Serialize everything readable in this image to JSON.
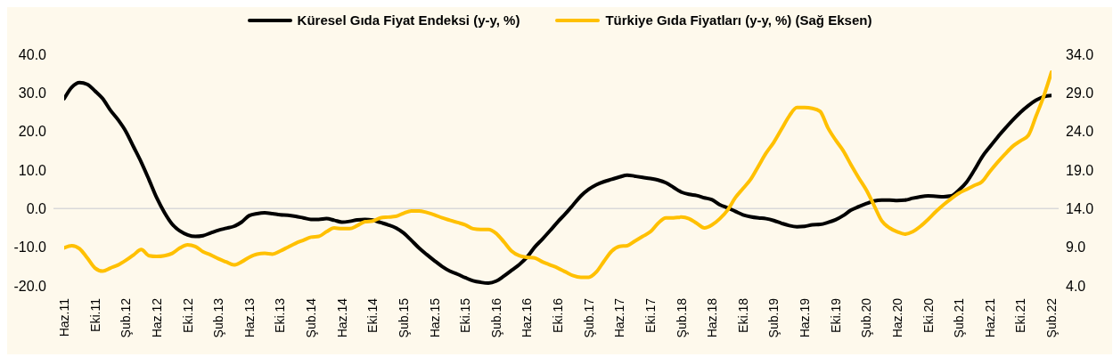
{
  "chart_data": {
    "type": "line",
    "categories": [
      "Haz.11",
      null,
      null,
      null,
      "Eki.11",
      null,
      null,
      null,
      "Şub.12",
      null,
      null,
      null,
      "Haz.12",
      null,
      null,
      null,
      "Eki.12",
      null,
      null,
      null,
      "Şub.13",
      null,
      null,
      null,
      "Haz.13",
      null,
      null,
      null,
      "Eki.13",
      null,
      null,
      null,
      "Şub.14",
      null,
      null,
      null,
      "Haz.14",
      null,
      null,
      null,
      "Eki.14",
      null,
      null,
      null,
      "Şub.15",
      null,
      null,
      null,
      "Haz.15",
      null,
      null,
      null,
      "Eki.15",
      null,
      null,
      null,
      "Şub.16",
      null,
      null,
      null,
      "Haz.16",
      null,
      null,
      null,
      "Eki.16",
      null,
      null,
      null,
      "Şub.17",
      null,
      null,
      null,
      "Haz.17",
      null,
      null,
      null,
      "Eki.17",
      null,
      null,
      null,
      "Şub.18",
      null,
      null,
      null,
      "Haz.18",
      null,
      null,
      null,
      "Eki.18",
      null,
      null,
      null,
      "Şub.19",
      null,
      null,
      null,
      "Haz.19",
      null,
      null,
      null,
      "Eki.19",
      null,
      null,
      null,
      "Şub.20",
      null,
      null,
      null,
      "Haz.20",
      null,
      null,
      null,
      "Eki.20",
      null,
      null,
      null,
      "Şub.21",
      null,
      null,
      null,
      "Haz.21",
      null,
      null,
      null,
      "Eki.21",
      null,
      null,
      null,
      "Şub.22"
    ],
    "series": [
      {
        "name": "Küresel Gıda Fiyat Endeksi (y-y, %)",
        "color": "#000000",
        "values": [
          28.5,
          31.5,
          32.7,
          32.2,
          30.5,
          28.5,
          25.5,
          23,
          20,
          16,
          12,
          7.5,
          2.8,
          -1,
          -4,
          -5.8,
          -6.8,
          -7.2,
          -7,
          -6.3,
          -5.6,
          -5.1,
          -4.6,
          -3.5,
          -1.8,
          -1.3,
          -1.1,
          -1.3,
          -1.6,
          -1.7,
          -2,
          -2.4,
          -2.8,
          -2.8,
          -2.6,
          -3,
          -3.5,
          -3.3,
          -2.9,
          -2.8,
          -3,
          -3.6,
          -4.2,
          -5,
          -6.3,
          -8.2,
          -10.2,
          -11.9,
          -13.5,
          -15,
          -16.2,
          -17,
          -17.9,
          -18.7,
          -19.1,
          -19.3,
          -18.8,
          -17.5,
          -16,
          -14.5,
          -12.6,
          -10,
          -7.9,
          -5.7,
          -3.4,
          -1.3,
          1,
          3.3,
          5,
          6.2,
          7,
          7.6,
          8.2,
          8.7,
          8.4,
          8.1,
          7.8,
          7.4,
          6.7,
          5.5,
          4.3,
          3.7,
          3.4,
          2.8,
          2.3,
          1,
          0.2,
          -0.7,
          -1.6,
          -2.1,
          -2.4,
          -2.6,
          -3.1,
          -3.8,
          -4.4,
          -4.7,
          -4.6,
          -4.2,
          -4.1,
          -3.6,
          -2.9,
          -1.8,
          -0.4,
          0.5,
          1.3,
          2,
          2.2,
          2.2,
          2.1,
          2.2,
          2.7,
          3.1,
          3.3,
          3.2,
          3.1,
          3.3,
          4.8,
          6.9,
          10,
          13.4,
          16,
          18.5,
          20.8,
          23,
          25,
          26.7,
          28.1,
          29,
          29.3
        ]
      },
      {
        "name": "Türkiye Gıda Fiyatları (y-y, %) (Sağ Eksen)",
        "color": "#ffc000",
        "axis": "y2",
        "values": [
          8.9,
          9.2,
          8.8,
          7.6,
          6.3,
          5.9,
          6.3,
          6.7,
          7.3,
          8,
          8.7,
          7.9,
          7.8,
          7.9,
          8.2,
          8.9,
          9.3,
          9.1,
          8.4,
          8,
          7.5,
          7.1,
          6.7,
          7.1,
          7.7,
          8.1,
          8.2,
          8.1,
          8.5,
          9,
          9.5,
          9.9,
          10.3,
          10.4,
          11,
          11.5,
          11.4,
          11.4,
          11.8,
          12.3,
          12.4,
          12.8,
          12.9,
          13,
          13.4,
          13.7,
          13.7,
          13.5,
          13.2,
          12.8,
          12.5,
          12.2,
          11.9,
          11.4,
          11.3,
          11.3,
          10.8,
          9.7,
          8.5,
          7.9,
          7.7,
          7.6,
          7.1,
          6.7,
          6.3,
          5.8,
          5.3,
          5.1,
          5.1,
          5.8,
          7.2,
          8.5,
          9.1,
          9.2,
          9.8,
          10.4,
          11,
          12.1,
          12.8,
          12.8,
          12.9,
          12.7,
          12.1,
          11.5,
          11.9,
          12.7,
          13.8,
          15.4,
          16.6,
          17.8,
          19.5,
          21.2,
          22.6,
          24.3,
          26,
          27.1,
          27.1,
          27,
          26.6,
          24.5,
          22.9,
          21.5,
          19.7,
          18,
          16.4,
          14.4,
          12.4,
          11.5,
          11,
          10.7,
          11,
          11.7,
          12.6,
          13.6,
          14.5,
          15.3,
          16,
          16.5,
          17,
          17.5,
          18.8,
          20,
          21.1,
          22.1,
          22.8,
          23.5,
          26,
          28.6,
          31.7
        ]
      }
    ],
    "ylim": [
      -20,
      40
    ],
    "yticks": [
      {
        "value": -20,
        "label": "-20.0"
      },
      {
        "value": -10,
        "label": "-10.0"
      },
      {
        "value": 0,
        "label": "0.0"
      },
      {
        "value": 10,
        "label": "10.0"
      },
      {
        "value": 20,
        "label": "20.0"
      },
      {
        "value": 30,
        "label": "30.0"
      },
      {
        "value": 40,
        "label": "40.0"
      }
    ],
    "y2lim": [
      4,
      34
    ],
    "y2ticks": [
      {
        "value": 4,
        "label": "4.0"
      },
      {
        "value": 9,
        "label": "9.0"
      },
      {
        "value": 14,
        "label": "14.0"
      },
      {
        "value": 19,
        "label": "19.0"
      },
      {
        "value": 24,
        "label": "24.0"
      },
      {
        "value": 29,
        "label": "29.0"
      },
      {
        "value": 34,
        "label": "34.0"
      }
    ],
    "ref_lines": [
      {
        "axis": "y",
        "value": 0,
        "color": "#d9d9d9"
      }
    ],
    "grid": false,
    "legend": "top",
    "marker": "none",
    "line_style": "solid"
  }
}
